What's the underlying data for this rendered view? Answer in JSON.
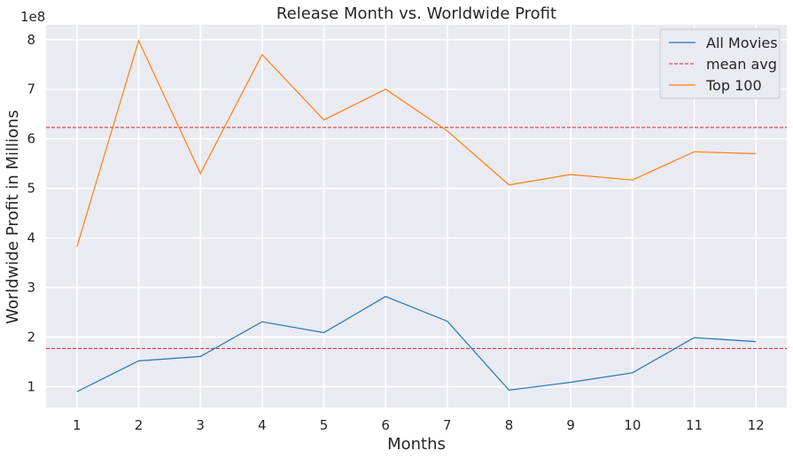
{
  "chart_data": {
    "type": "line",
    "title": "Release Month vs. Worldwide Profit",
    "xlabel": "Months",
    "ylabel": "Worldwide Profit in Millions",
    "y_offset_label": "1e8",
    "x": [
      1,
      2,
      3,
      4,
      5,
      6,
      7,
      8,
      9,
      10,
      11,
      12
    ],
    "xlim": [
      0.5,
      12.5
    ],
    "ylim": [
      0.58,
      8.3
    ],
    "y_ticks": [
      1,
      2,
      3,
      4,
      5,
      6,
      7,
      8
    ],
    "grid": true,
    "legend_position": "top-right",
    "series": [
      {
        "name": "All Movies",
        "color": "#1f77b4",
        "values": [
          0.9,
          1.52,
          1.61,
          2.31,
          2.09,
          2.82,
          2.32,
          0.93,
          1.09,
          1.28,
          1.99,
          1.91
        ]
      },
      {
        "name": "Top 100",
        "color": "#ff7f0e",
        "values": [
          3.82,
          7.98,
          5.3,
          7.7,
          6.38,
          7.0,
          6.16,
          5.07,
          5.28,
          5.17,
          5.74,
          5.7
        ]
      }
    ],
    "reference_lines": [
      {
        "name": "mean avg",
        "color": "#d62728",
        "style": "dashed",
        "values": [
          6.23,
          1.77
        ]
      }
    ],
    "legend": [
      "All Movies",
      "mean avg",
      "Top 100"
    ]
  }
}
